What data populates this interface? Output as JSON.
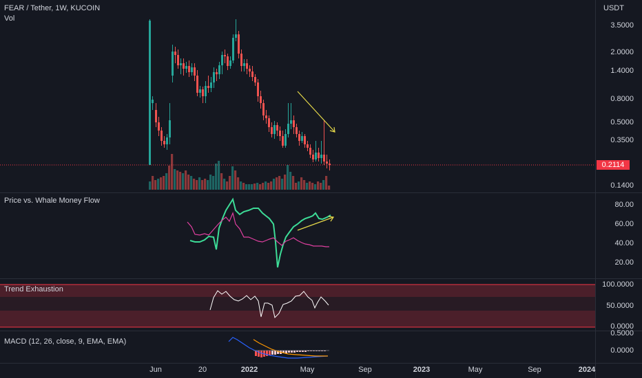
{
  "header": {
    "symbol": "FEAR / Tether, 1W, KUCOIN",
    "volume_label": "Vol",
    "currency": "USDT"
  },
  "main_axis": {
    "labels": [
      "3.5000",
      "2.0000",
      "1.4000",
      "0.8000",
      "0.5000",
      "0.3500",
      "0.1400"
    ],
    "current_price": "0.2114"
  },
  "panes": {
    "whale": {
      "title": "Price vs. Whale Money Flow",
      "labels": [
        "80.00",
        "60.00",
        "40.00",
        "20.00"
      ]
    },
    "trend": {
      "title": "Trend Exhaustion",
      "labels": [
        "100.0000",
        "50.0000",
        "0.0000"
      ]
    },
    "macd": {
      "title": "MACD (12, 26, close, 9, EMA, EMA)",
      "labels": [
        "0.5000",
        "0.0000"
      ]
    }
  },
  "time_axis": [
    "Jun",
    "20",
    "2022",
    "May",
    "Sep",
    "2023",
    "May",
    "Sep",
    "2024"
  ],
  "colors": {
    "bull": "#26a69a",
    "bear": "#ef5350",
    "accent_line": "#f23645",
    "whale_green": "#3ddc97",
    "whale_pink": "#e040a0",
    "arrow": "#e6d94a"
  },
  "chart_data": {
    "type": "candlestick",
    "price_scale": "log",
    "last_price": 0.2114
  }
}
